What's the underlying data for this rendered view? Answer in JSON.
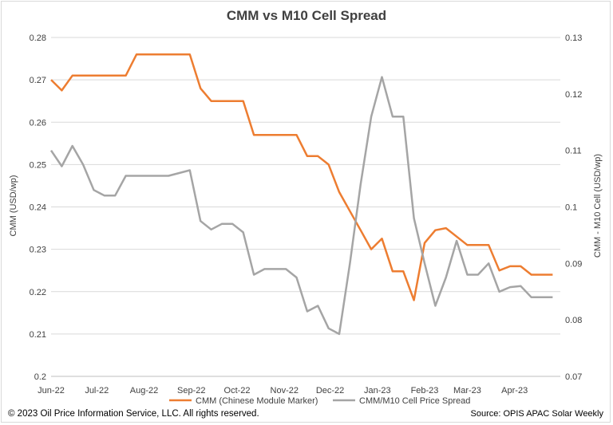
{
  "chart_data": {
    "type": "line",
    "title": "CMM vs M10 Cell Spread",
    "ylabel": "CMM (USD/wp)",
    "y2label": "CMM - M10 Cell (USD/wp)",
    "ylim": [
      0.2,
      0.28
    ],
    "y2lim": [
      0.07,
      0.13
    ],
    "yticks": [
      "0.2",
      "0.21",
      "0.22",
      "0.23",
      "0.24",
      "0.25",
      "0.26",
      "0.27",
      "0.28"
    ],
    "y2ticks": [
      "0.07",
      "0.08",
      "0.09",
      "0.1",
      "0.11",
      "0.12",
      "0.13"
    ],
    "x_tick_labels": [
      "Jun-22",
      "Jul-22",
      "Aug-22",
      "Sep-22",
      "Oct-22",
      "Nov-22",
      "Dec-22",
      "Jan-23",
      "Feb-23",
      "Mar-23",
      "Apr-23"
    ],
    "grid": true,
    "legend_position": "bottom",
    "series": [
      {
        "name": "CMM (Chinese Module Marker)",
        "axis": "left",
        "color": "#ed7d31",
        "points": [
          [
            "2022-06-01",
            0.27
          ],
          [
            "2022-06-08",
            0.2675
          ],
          [
            "2022-06-15",
            0.271
          ],
          [
            "2022-06-22",
            0.271
          ],
          [
            "2022-06-29",
            0.271
          ],
          [
            "2022-07-06",
            0.271
          ],
          [
            "2022-07-13",
            0.271
          ],
          [
            "2022-07-20",
            0.271
          ],
          [
            "2022-07-27",
            0.276
          ],
          [
            "2022-08-03",
            0.276
          ],
          [
            "2022-08-10",
            0.276
          ],
          [
            "2022-08-17",
            0.276
          ],
          [
            "2022-08-24",
            0.276
          ],
          [
            "2022-08-31",
            0.276
          ],
          [
            "2022-09-07",
            0.268
          ],
          [
            "2022-09-14",
            0.265
          ],
          [
            "2022-09-21",
            0.265
          ],
          [
            "2022-09-28",
            0.265
          ],
          [
            "2022-10-05",
            0.265
          ],
          [
            "2022-10-12",
            0.257
          ],
          [
            "2022-10-19",
            0.257
          ],
          [
            "2022-10-26",
            0.257
          ],
          [
            "2022-11-02",
            0.257
          ],
          [
            "2022-11-09",
            0.257
          ],
          [
            "2022-11-16",
            0.252
          ],
          [
            "2022-11-23",
            0.252
          ],
          [
            "2022-11-30",
            0.25
          ],
          [
            "2022-12-07",
            0.2435
          ],
          [
            "2022-12-14",
            0.239
          ],
          [
            "2022-12-21",
            0.2345
          ],
          [
            "2022-12-28",
            0.23
          ],
          [
            "2023-01-04",
            0.2325
          ],
          [
            "2023-01-11",
            0.2248
          ],
          [
            "2023-01-18",
            0.2248
          ],
          [
            "2023-01-25",
            0.218
          ],
          [
            "2023-02-01",
            0.2315
          ],
          [
            "2023-02-08",
            0.2345
          ],
          [
            "2023-02-15",
            0.235
          ],
          [
            "2023-02-22",
            0.233
          ],
          [
            "2023-03-01",
            0.231
          ],
          [
            "2023-03-08",
            0.231
          ],
          [
            "2023-03-15",
            0.231
          ],
          [
            "2023-03-22",
            0.225
          ],
          [
            "2023-03-29",
            0.226
          ],
          [
            "2023-04-05",
            0.226
          ],
          [
            "2023-04-12",
            0.224
          ],
          [
            "2023-04-19",
            0.224
          ],
          [
            "2023-04-26",
            0.224
          ]
        ]
      },
      {
        "name": "CMM/M10 Cell Price Spread",
        "axis": "right",
        "color": "#a5a5a5",
        "points": [
          [
            "2022-06-01",
            0.11
          ],
          [
            "2022-06-08",
            0.1072
          ],
          [
            "2022-06-15",
            0.1108
          ],
          [
            "2022-06-22",
            0.1075
          ],
          [
            "2022-06-29",
            0.103
          ],
          [
            "2022-07-06",
            0.102
          ],
          [
            "2022-07-13",
            0.102
          ],
          [
            "2022-07-20",
            0.1055
          ],
          [
            "2022-07-27",
            0.1055
          ],
          [
            "2022-08-03",
            0.1055
          ],
          [
            "2022-08-10",
            0.1055
          ],
          [
            "2022-08-17",
            0.1055
          ],
          [
            "2022-08-24",
            0.106
          ],
          [
            "2022-08-31",
            0.1065
          ],
          [
            "2022-09-07",
            0.0975
          ],
          [
            "2022-09-14",
            0.096
          ],
          [
            "2022-09-21",
            0.097
          ],
          [
            "2022-09-28",
            0.097
          ],
          [
            "2022-10-05",
            0.0955
          ],
          [
            "2022-10-12",
            0.088
          ],
          [
            "2022-10-19",
            0.089
          ],
          [
            "2022-10-26",
            0.089
          ],
          [
            "2022-11-02",
            0.089
          ],
          [
            "2022-11-09",
            0.0875
          ],
          [
            "2022-11-16",
            0.0815
          ],
          [
            "2022-11-23",
            0.0825
          ],
          [
            "2022-11-30",
            0.0785
          ],
          [
            "2022-12-07",
            0.0775
          ],
          [
            "2022-12-14",
            0.09
          ],
          [
            "2022-12-21",
            0.104
          ],
          [
            "2022-12-28",
            0.116
          ],
          [
            "2023-01-04",
            0.123
          ],
          [
            "2023-01-11",
            0.116
          ],
          [
            "2023-01-18",
            0.116
          ],
          [
            "2023-01-25",
            0.098
          ],
          [
            "2023-02-01",
            0.09
          ],
          [
            "2023-02-08",
            0.0825
          ],
          [
            "2023-02-15",
            0.0875
          ],
          [
            "2023-02-22",
            0.094
          ],
          [
            "2023-03-01",
            0.088
          ],
          [
            "2023-03-08",
            0.088
          ],
          [
            "2023-03-15",
            0.09
          ],
          [
            "2023-03-22",
            0.085
          ],
          [
            "2023-03-29",
            0.0858
          ],
          [
            "2023-04-05",
            0.086
          ],
          [
            "2023-04-12",
            0.084
          ],
          [
            "2023-04-19",
            0.084
          ],
          [
            "2023-04-26",
            0.084
          ]
        ]
      }
    ]
  },
  "footer": {
    "copyright": "© 2023 Oil Price Information Service, LLC. All rights reserved.",
    "source": "Source: OPIS APAC Solar Weekly"
  }
}
